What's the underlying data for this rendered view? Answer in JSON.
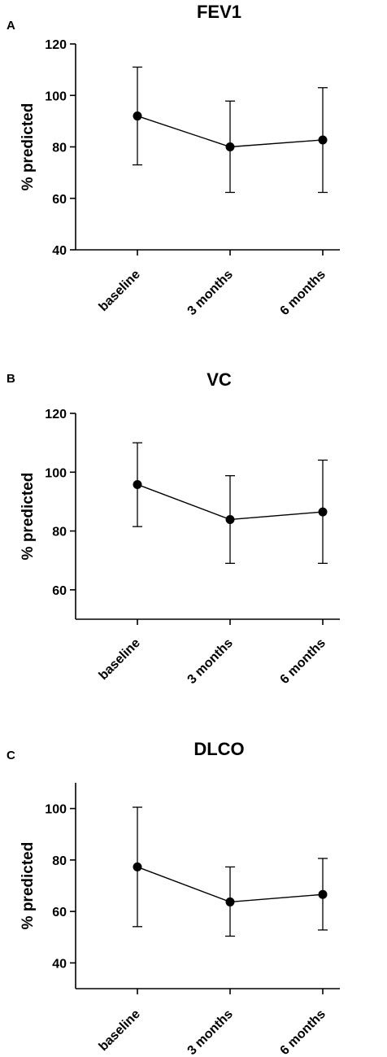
{
  "chart_data": [
    {
      "type": "line",
      "panel": "A",
      "title": "FEV1",
      "xlabel": "",
      "ylabel": "% predicted",
      "categories": [
        "baseline",
        "3 months",
        "6 months"
      ],
      "y_ticks": [
        40,
        60,
        80,
        100,
        120
      ],
      "ylim": [
        40,
        120
      ],
      "grid": false,
      "series": [
        {
          "values": [
            92,
            80,
            82.7
          ],
          "error_low": [
            73,
            62.3,
            62.3
          ],
          "error_high": [
            111,
            97.8,
            103
          ]
        }
      ]
    },
    {
      "type": "line",
      "panel": "B",
      "title": "VC",
      "xlabel": "",
      "ylabel": "% predicted",
      "categories": [
        "baseline",
        "3 months",
        "6 months"
      ],
      "y_ticks": [
        60,
        80,
        100,
        120
      ],
      "ylim": [
        50,
        120
      ],
      "grid": false,
      "series": [
        {
          "values": [
            95.8,
            83.9,
            86.5
          ],
          "error_low": [
            81.5,
            69,
            69
          ],
          "error_high": [
            110,
            98.8,
            104.1
          ]
        }
      ]
    },
    {
      "type": "line",
      "panel": "C",
      "title": "DLCO",
      "xlabel": "",
      "ylabel": "% predicted",
      "categories": [
        "baseline",
        "3 months",
        "6 months"
      ],
      "y_ticks": [
        40,
        60,
        80,
        100
      ],
      "ylim": [
        30,
        110
      ],
      "grid": false,
      "series": [
        {
          "values": [
            77.3,
            63.7,
            66.6
          ],
          "error_low": [
            54.1,
            50.4,
            52.8
          ],
          "error_high": [
            100.5,
            77.3,
            80.6
          ]
        }
      ]
    }
  ]
}
